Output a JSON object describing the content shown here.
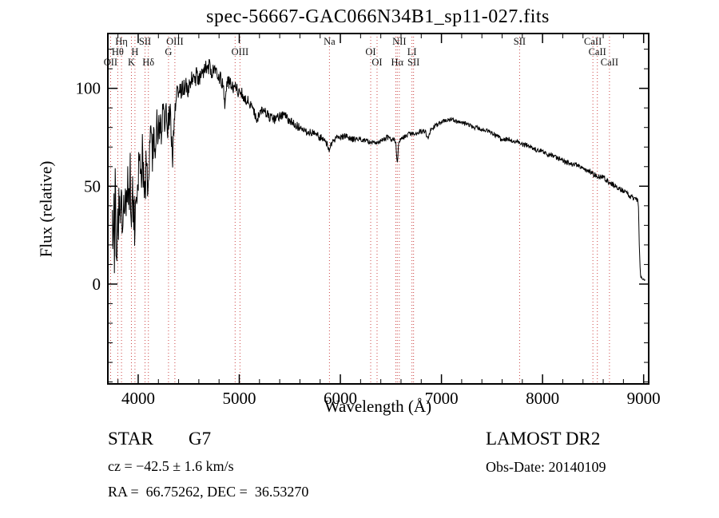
{
  "title": "spec-56667-GAC066N34B1_sp11-027.fits",
  "annotations": {
    "object_type": "STAR",
    "subclass": "G7",
    "survey": "LAMOST DR2",
    "cz": "cz = −42.5 ± 1.6 km/s",
    "obs_date": "Obs-Date: 20140109",
    "ra_dec": "RA =  66.75262, DEC =  36.53270"
  },
  "colors": {
    "background": "#ffffff",
    "spectrum": "#000000",
    "frame": "#000000",
    "line_marker": "#cc4444",
    "line_label": "#111111"
  },
  "chart_data": {
    "type": "line",
    "title": "spec-56667-GAC066N34B1_sp11-027.fits",
    "xlabel": "Wavelength (Å)",
    "ylabel": "Flux (relative)",
    "xlim": [
      3700,
      9050
    ],
    "ylim": [
      -51,
      128
    ],
    "grid": false,
    "x_ticks": [
      {
        "value": 4000,
        "label": "4000"
      },
      {
        "value": 5000,
        "label": "5000"
      },
      {
        "value": 6000,
        "label": "6000"
      },
      {
        "value": 7000,
        "label": "7000"
      },
      {
        "value": 8000,
        "label": "8000"
      },
      {
        "value": 9000,
        "label": "9000"
      }
    ],
    "y_ticks": [
      {
        "value": 0,
        "label": "0"
      },
      {
        "value": 50,
        "label": "50"
      },
      {
        "value": 100,
        "label": "100"
      }
    ],
    "x_minor_step": 200,
    "y_minor_step": 10,
    "spectral_lines": [
      {
        "label": "OII",
        "wavelength": 3727,
        "row": 3
      },
      {
        "label": "Hθ",
        "wavelength": 3798,
        "row": 2
      },
      {
        "label": "Hη",
        "wavelength": 3835,
        "row": 1
      },
      {
        "label": "K",
        "wavelength": 3933,
        "row": 3
      },
      {
        "label": "H",
        "wavelength": 3968,
        "row": 2
      },
      {
        "label": "SII",
        "wavelength": 4068,
        "row": 1
      },
      {
        "label": "Hδ",
        "wavelength": 4101,
        "row": 3
      },
      {
        "label": "G",
        "wavelength": 4300,
        "row": 2
      },
      {
        "label": "OIII",
        "wavelength": 4363,
        "row": 1
      },
      {
        "label": "",
        "wavelength": 4959,
        "row": 0
      },
      {
        "label": "OIII",
        "wavelength": 5007,
        "row": 2
      },
      {
        "label": "Na",
        "wavelength": 5892,
        "row": 1
      },
      {
        "label": "OI",
        "wavelength": 6300,
        "row": 2
      },
      {
        "label": "OI",
        "wavelength": 6363,
        "row": 3
      },
      {
        "label": "",
        "wavelength": 6548,
        "row": 0
      },
      {
        "label": "Hα",
        "wavelength": 6563,
        "row": 3
      },
      {
        "label": "NII",
        "wavelength": 6583,
        "row": 1
      },
      {
        "label": "LI",
        "wavelength": 6708,
        "row": 2
      },
      {
        "label": "SII",
        "wavelength": 6724,
        "row": 3
      },
      {
        "label": "SII",
        "wavelength": 7773,
        "row": 1
      },
      {
        "label": "CaII",
        "wavelength": 8498,
        "row": 1
      },
      {
        "label": "CaII",
        "wavelength": 8542,
        "row": 2
      },
      {
        "label": "CaII",
        "wavelength": 8662,
        "row": 3
      }
    ],
    "noise_envelope": [
      [
        3745,
        15
      ],
      [
        3900,
        13
      ],
      [
        4000,
        12
      ],
      [
        4100,
        10
      ],
      [
        4250,
        8
      ],
      [
        4400,
        5.5
      ],
      [
        4600,
        4.5
      ],
      [
        4800,
        4
      ],
      [
        5000,
        3.2
      ],
      [
        5300,
        2.6
      ],
      [
        5600,
        2.2
      ],
      [
        5900,
        1.8
      ],
      [
        6200,
        1.5
      ],
      [
        6500,
        1.3
      ],
      [
        6800,
        1.2
      ],
      [
        7200,
        1.1
      ],
      [
        7600,
        1.1
      ],
      [
        8000,
        1.2
      ],
      [
        8400,
        1.3
      ],
      [
        8700,
        1.4
      ],
      [
        8950,
        1.2
      ],
      [
        9018,
        0.4
      ]
    ],
    "series": [
      {
        "name": "spectrum",
        "points": [
          [
            3745,
            25
          ],
          [
            3752,
            6
          ],
          [
            3758,
            42
          ],
          [
            3765,
            18
          ],
          [
            3772,
            52
          ],
          [
            3780,
            28
          ],
          [
            3788,
            10
          ],
          [
            3796,
            38
          ],
          [
            3804,
            22
          ],
          [
            3812,
            48
          ],
          [
            3822,
            30
          ],
          [
            3832,
            55
          ],
          [
            3842,
            22
          ],
          [
            3852,
            44
          ],
          [
            3862,
            28
          ],
          [
            3874,
            58
          ],
          [
            3886,
            36
          ],
          [
            3898,
            52
          ],
          [
            3910,
            36
          ],
          [
            3921,
            56
          ],
          [
            3933,
            22
          ],
          [
            3944,
            48
          ],
          [
            3955,
            38
          ],
          [
            3968,
            30
          ],
          [
            3980,
            56
          ],
          [
            3995,
            46
          ],
          [
            4010,
            62
          ],
          [
            4025,
            48
          ],
          [
            4040,
            68
          ],
          [
            4055,
            52
          ],
          [
            4068,
            45
          ],
          [
            4080,
            65
          ],
          [
            4092,
            55
          ],
          [
            4101,
            46
          ],
          [
            4112,
            68
          ],
          [
            4125,
            74
          ],
          [
            4140,
            62
          ],
          [
            4155,
            78
          ],
          [
            4170,
            70
          ],
          [
            4185,
            82
          ],
          [
            4200,
            74
          ],
          [
            4215,
            86
          ],
          [
            4230,
            78
          ],
          [
            4245,
            88
          ],
          [
            4260,
            80
          ],
          [
            4275,
            90
          ],
          [
            4290,
            78
          ],
          [
            4305,
            84
          ],
          [
            4320,
            88
          ],
          [
            4332,
            72
          ],
          [
            4340,
            58
          ],
          [
            4350,
            80
          ],
          [
            4365,
            90
          ],
          [
            4380,
            95
          ],
          [
            4400,
            98
          ],
          [
            4430,
            100
          ],
          [
            4460,
            102
          ],
          [
            4490,
            100
          ],
          [
            4520,
            104
          ],
          [
            4550,
            103
          ],
          [
            4580,
            107
          ],
          [
            4610,
            105
          ],
          [
            4640,
            108
          ],
          [
            4670,
            110
          ],
          [
            4700,
            111
          ],
          [
            4730,
            109
          ],
          [
            4760,
            110
          ],
          [
            4790,
            107
          ],
          [
            4820,
            105
          ],
          [
            4840,
            101
          ],
          [
            4861,
            90
          ],
          [
            4880,
            102
          ],
          [
            4910,
            104
          ],
          [
            4940,
            101
          ],
          [
            4970,
            100
          ],
          [
            5000,
            98
          ],
          [
            5030,
            97
          ],
          [
            5060,
            95
          ],
          [
            5090,
            93
          ],
          [
            5120,
            90
          ],
          [
            5150,
            88
          ],
          [
            5175,
            84
          ],
          [
            5200,
            88
          ],
          [
            5230,
            89
          ],
          [
            5260,
            88
          ],
          [
            5290,
            86
          ],
          [
            5320,
            85
          ],
          [
            5350,
            84
          ],
          [
            5380,
            85
          ],
          [
            5410,
            86
          ],
          [
            5440,
            87
          ],
          [
            5470,
            85
          ],
          [
            5500,
            83
          ],
          [
            5530,
            82
          ],
          [
            5560,
            81
          ],
          [
            5590,
            80
          ],
          [
            5620,
            79
          ],
          [
            5650,
            78
          ],
          [
            5680,
            78
          ],
          [
            5710,
            77
          ],
          [
            5740,
            77
          ],
          [
            5770,
            76
          ],
          [
            5800,
            75
          ],
          [
            5830,
            74
          ],
          [
            5860,
            72
          ],
          [
            5890,
            69
          ],
          [
            5915,
            72
          ],
          [
            5945,
            74
          ],
          [
            5975,
            75
          ],
          [
            6010,
            75
          ],
          [
            6045,
            76
          ],
          [
            6080,
            75
          ],
          [
            6115,
            74
          ],
          [
            6150,
            74
          ],
          [
            6185,
            74
          ],
          [
            6220,
            74
          ],
          [
            6255,
            73
          ],
          [
            6290,
            73
          ],
          [
            6325,
            73
          ],
          [
            6360,
            72
          ],
          [
            6395,
            73
          ],
          [
            6430,
            74
          ],
          [
            6465,
            75
          ],
          [
            6500,
            74
          ],
          [
            6530,
            74
          ],
          [
            6550,
            72
          ],
          [
            6563,
            60
          ],
          [
            6578,
            73
          ],
          [
            6600,
            74
          ],
          [
            6630,
            75
          ],
          [
            6660,
            76
          ],
          [
            6690,
            77
          ],
          [
            6720,
            77
          ],
          [
            6750,
            77
          ],
          [
            6780,
            78
          ],
          [
            6810,
            78
          ],
          [
            6840,
            78
          ],
          [
            6865,
            74
          ],
          [
            6890,
            78
          ],
          [
            6920,
            80
          ],
          [
            6950,
            81
          ],
          [
            6980,
            82
          ],
          [
            7010,
            83
          ],
          [
            7045,
            84
          ],
          [
            7080,
            84
          ],
          [
            7115,
            84
          ],
          [
            7150,
            83
          ],
          [
            7185,
            83
          ],
          [
            7220,
            82
          ],
          [
            7255,
            82
          ],
          [
            7290,
            81
          ],
          [
            7325,
            80
          ],
          [
            7360,
            80
          ],
          [
            7395,
            79
          ],
          [
            7430,
            79
          ],
          [
            7465,
            78
          ],
          [
            7500,
            77
          ],
          [
            7535,
            76
          ],
          [
            7570,
            75
          ],
          [
            7600,
            73
          ],
          [
            7635,
            74
          ],
          [
            7670,
            74
          ],
          [
            7705,
            73
          ],
          [
            7740,
            73
          ],
          [
            7775,
            72
          ],
          [
            7810,
            71
          ],
          [
            7845,
            71
          ],
          [
            7880,
            70
          ],
          [
            7915,
            69
          ],
          [
            7950,
            68
          ],
          [
            7985,
            68
          ],
          [
            8020,
            67
          ],
          [
            8055,
            66
          ],
          [
            8090,
            66
          ],
          [
            8125,
            65
          ],
          [
            8160,
            64
          ],
          [
            8195,
            63
          ],
          [
            8230,
            62
          ],
          [
            8265,
            62
          ],
          [
            8300,
            61
          ],
          [
            8335,
            61
          ],
          [
            8370,
            60
          ],
          [
            8405,
            59
          ],
          [
            8440,
            58
          ],
          [
            8475,
            57
          ],
          [
            8510,
            56
          ],
          [
            8545,
            55
          ],
          [
            8580,
            55
          ],
          [
            8615,
            54
          ],
          [
            8650,
            52
          ],
          [
            8685,
            51
          ],
          [
            8720,
            50
          ],
          [
            8755,
            49
          ],
          [
            8790,
            48
          ],
          [
            8825,
            47
          ],
          [
            8860,
            45
          ],
          [
            8895,
            44
          ],
          [
            8930,
            43
          ],
          [
            8948,
            42
          ],
          [
            8958,
            18
          ],
          [
            8968,
            4
          ],
          [
            8985,
            3
          ],
          [
            9005,
            2
          ],
          [
            9018,
            2
          ]
        ]
      }
    ]
  }
}
